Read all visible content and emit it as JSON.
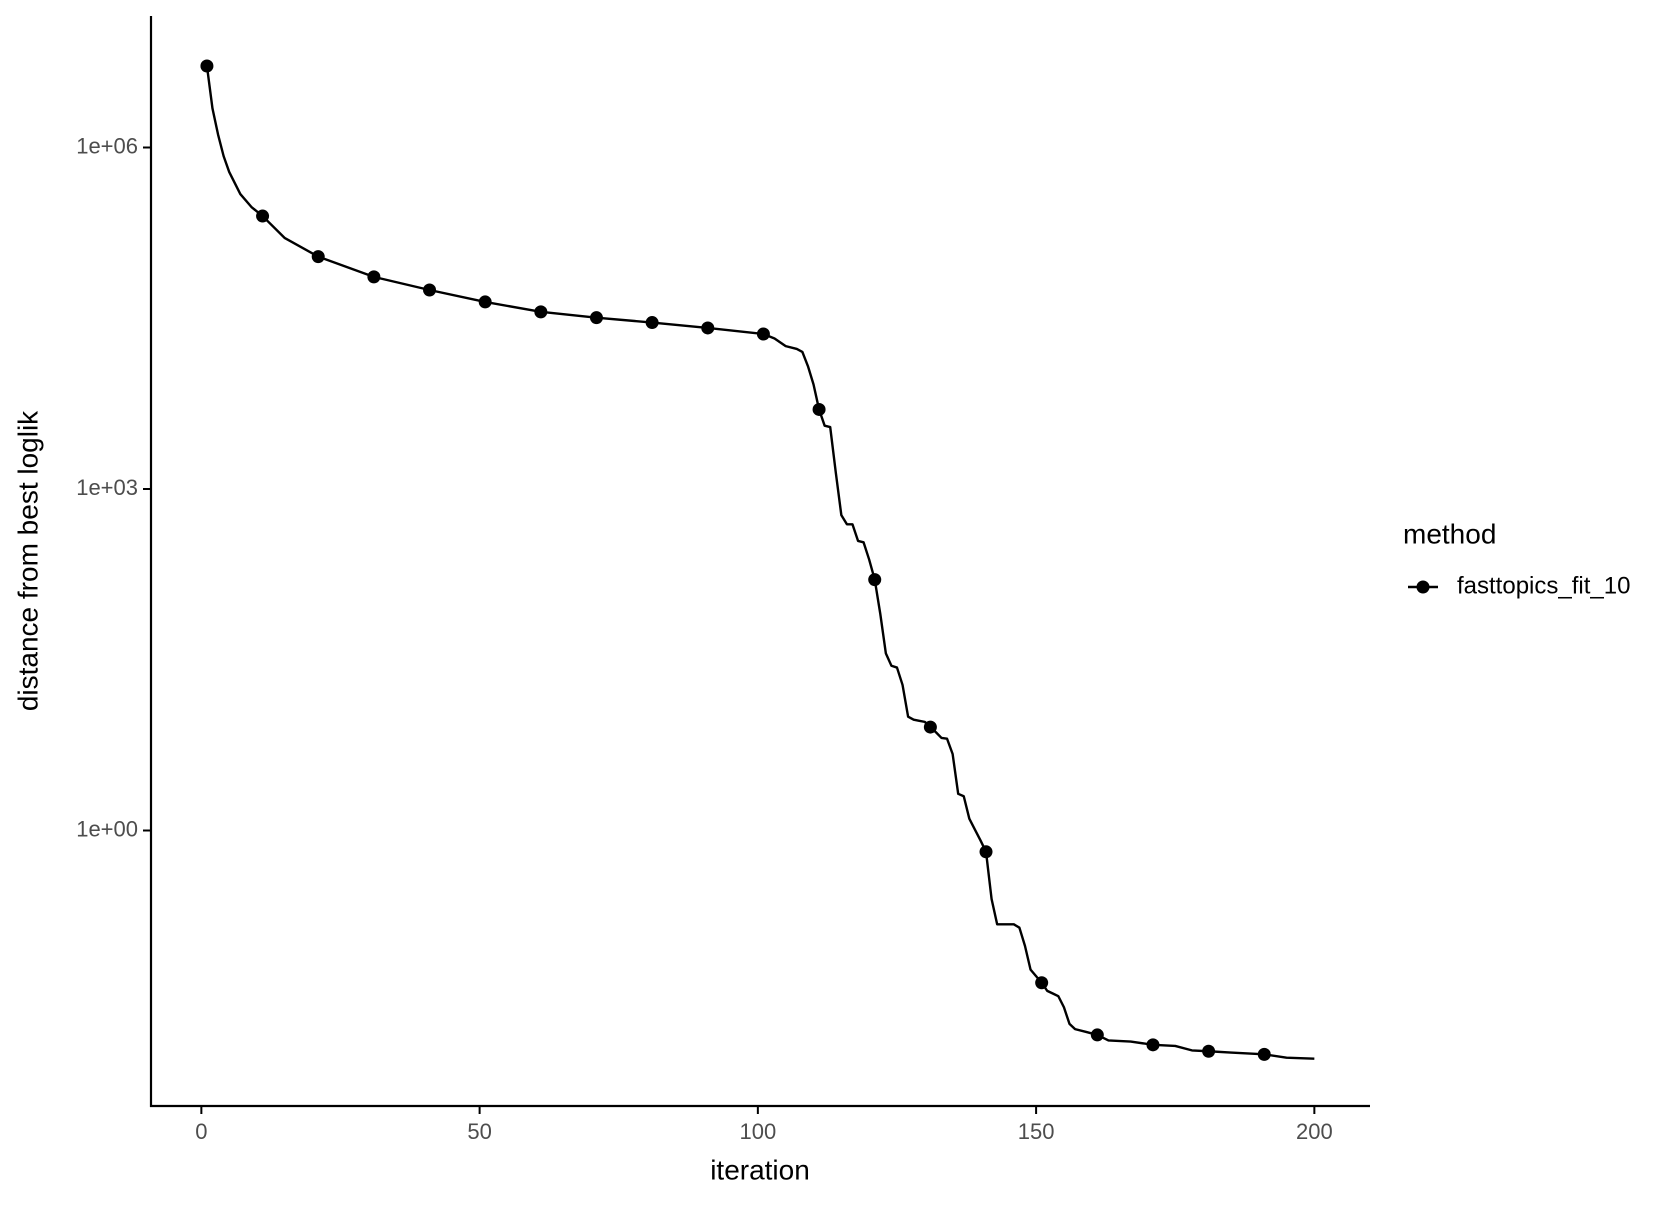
{
  "chart_data": {
    "type": "line",
    "x_label": "iteration",
    "y_label": "distance from best loglik",
    "legend_title": "method",
    "legend_position": "right",
    "y_scale": "log",
    "xlim": [
      -9.05,
      210
    ],
    "ylim": [
      0.0038,
      14300000
    ],
    "xticks": [
      0,
      50,
      100,
      150,
      200
    ],
    "yticks": [
      {
        "value": 1,
        "label": "1e+00"
      },
      {
        "value": 1000,
        "label": "1e+03"
      },
      {
        "value": 1000000,
        "label": "1e+06"
      }
    ],
    "series": [
      {
        "name": "fasttopics_fit_10",
        "color": "#000000",
        "x": [
          1,
          2,
          3,
          4,
          5,
          7,
          9,
          11,
          15,
          21,
          31,
          41,
          51,
          61,
          71,
          81,
          91,
          101,
          103,
          105,
          107,
          108,
          109,
          110,
          111,
          112,
          113,
          114,
          115,
          116,
          117,
          118,
          119,
          120,
          121,
          122,
          123,
          124,
          125,
          126,
          127,
          128,
          129,
          130,
          131,
          132,
          133,
          134,
          135,
          136,
          137,
          138,
          139,
          140,
          141,
          142,
          143,
          146,
          147,
          148,
          149,
          151,
          152,
          153,
          154,
          155,
          156,
          157,
          159,
          161,
          163,
          167,
          171,
          175,
          178,
          181,
          185,
          191,
          195,
          200
        ],
        "values": [
          5200000,
          2200000,
          1300000,
          840000,
          610000,
          390000,
          300000,
          250000,
          160000,
          110000,
          73000,
          56000,
          44000,
          36000,
          32000,
          29000,
          26000,
          23000,
          21000,
          18000,
          17000,
          16000,
          12000,
          8300,
          5000,
          3600,
          3500,
          1400,
          590,
          490,
          490,
          350,
          340,
          240,
          160,
          80,
          36,
          28,
          27,
          19,
          10,
          9.4,
          9.2,
          9.0,
          8.1,
          7.3,
          6.5,
          6.4,
          4.7,
          2.1,
          2.0,
          1.27,
          1.02,
          0.82,
          0.65,
          0.25,
          0.15,
          0.15,
          0.14,
          0.097,
          0.06,
          0.046,
          0.039,
          0.037,
          0.035,
          0.028,
          0.02,
          0.018,
          0.017,
          0.016,
          0.0143,
          0.014,
          0.0131,
          0.0128,
          0.0117,
          0.0115,
          0.0112,
          0.0108,
          0.0101,
          0.0099
        ]
      }
    ]
  }
}
